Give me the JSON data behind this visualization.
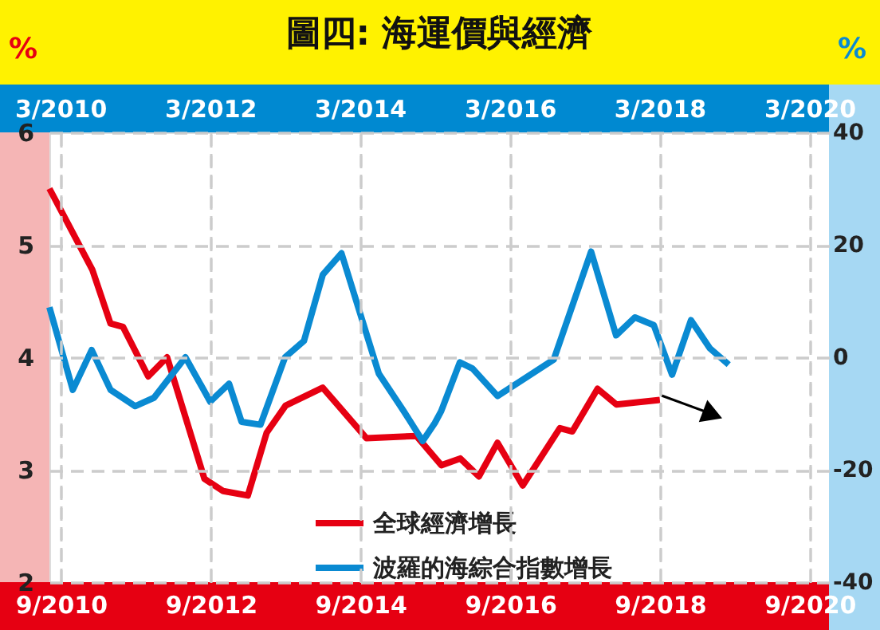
{
  "chart_data": [
    {
      "type": "line",
      "title": "圖四: 海運價與經濟",
      "ylabel": "%",
      "xlim": [
        "2010-07-07",
        "2020-12-04"
      ],
      "xticks": [
        {
          "value": "2010-09",
          "label": "9/2010"
        },
        {
          "value": "2012-09",
          "label": "9/2012"
        },
        {
          "value": "2014-09",
          "label": "9/2014"
        },
        {
          "value": "2016-09",
          "label": "9/2016"
        },
        {
          "value": "2018-09",
          "label": "9/2018"
        },
        {
          "value": "2020-09",
          "label": "9/2020"
        }
      ],
      "ylim": [
        2,
        6
      ],
      "yticks": [
        2,
        3,
        4,
        5,
        6
      ],
      "grid": true,
      "legend": "bottom",
      "line_style": "solid",
      "marker": "none",
      "series": [
        {
          "name": "全球經濟增長",
          "color": "#e60012",
          "x": [
            "2010-07-07",
            "2011-02",
            "2011-05",
            "2011-07",
            "2011-11",
            "2012-02",
            "2012-08",
            "2012-11",
            "2013-03",
            "2013-06",
            "2013-09",
            "2014-03",
            "2014-10",
            "2015-06",
            "2015-10",
            "2016-01",
            "2016-04",
            "2016-07",
            "2016-11",
            "2017-05",
            "2017-07",
            "2017-11",
            "2018-02",
            "2018-09"
          ],
          "values": [
            5.5,
            4.78,
            4.3,
            4.27,
            3.83,
            4.0,
            2.92,
            2.81,
            2.77,
            3.33,
            3.57,
            3.73,
            3.28,
            3.3,
            3.04,
            3.1,
            2.94,
            3.24,
            2.86,
            3.37,
            3.34,
            3.72,
            3.58,
            3.62
          ]
        }
      ]
    },
    {
      "type": "line",
      "ylabel": "%",
      "xlim": [
        "2010-01-07",
        "2020-06-04"
      ],
      "xticks": [
        {
          "value": "2010-03",
          "label": "3/2010"
        },
        {
          "value": "2012-03",
          "label": "3/2012"
        },
        {
          "value": "2014-03",
          "label": "3/2014"
        },
        {
          "value": "2016-03",
          "label": "3/2016"
        },
        {
          "value": "2018-03",
          "label": "3/2018"
        },
        {
          "value": "2020-03",
          "label": "3/2020"
        }
      ],
      "ylim": [
        -40,
        40
      ],
      "yticks": [
        -40,
        -20,
        0,
        20,
        40
      ],
      "grid": true,
      "line_style": "solid",
      "marker": "none",
      "series": [
        {
          "name": "波羅的海綜合指數增長",
          "color": "#0a8ad2",
          "x": [
            "2010-01-07",
            "2010-05",
            "2010-08",
            "2010-11",
            "2011-03",
            "2011-06",
            "2011-11",
            "2012-03",
            "2012-06",
            "2012-08",
            "2012-11",
            "2013-03",
            "2013-06",
            "2013-09",
            "2013-12",
            "2014-06",
            "2014-10",
            "2015-01",
            "2015-03",
            "2015-04",
            "2015-07",
            "2015-09",
            "2016-01",
            "2016-10",
            "2017-04",
            "2017-08",
            "2017-11",
            "2018-02",
            "2018-05",
            "2018-08",
            "2018-11",
            "2019-02"
          ],
          "values": [
            8.9,
            -5.8,
            1.3,
            -5.8,
            -8.7,
            -7.2,
            0,
            -7.9,
            -4.7,
            -11.5,
            -12,
            0,
            2.9,
            14.7,
            18.5,
            -2.9,
            -9.6,
            -14.9,
            -11.7,
            -9.6,
            -0.9,
            -2.0,
            -6.9,
            -0.4,
            18.8,
            3.9,
            7.1,
            5.7,
            -3.1,
            6.6,
            1.6,
            -1.3
          ]
        }
      ]
    }
  ]
}
